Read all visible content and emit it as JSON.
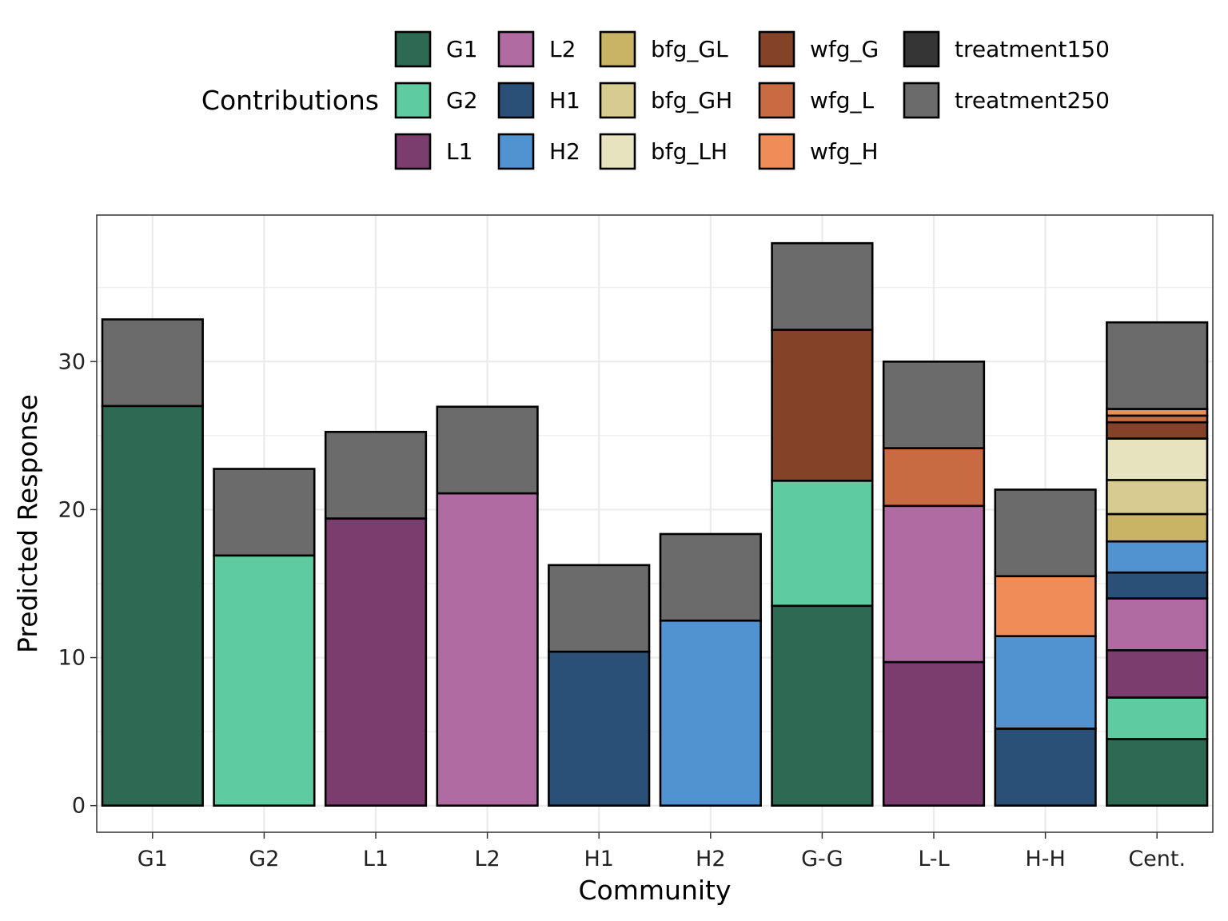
{
  "chart_data": {
    "type": "bar",
    "stacked": true,
    "xlabel": "Community",
    "ylabel": "Predicted Response",
    "ylim": [
      -1.8,
      39.9
    ],
    "yticks": [
      0,
      10,
      20,
      30
    ],
    "grid": true,
    "legend": {
      "title": "Contributions",
      "position": "top",
      "entries": [
        {
          "name": "G1",
          "color": "#2E6A53"
        },
        {
          "name": "G2",
          "color": "#5ECBA1"
        },
        {
          "name": "L1",
          "color": "#7A3D6E"
        },
        {
          "name": "L2",
          "color": "#B06BA3"
        },
        {
          "name": "H1",
          "color": "#2A5077"
        },
        {
          "name": "H2",
          "color": "#5093D0"
        },
        {
          "name": "bfg_GL",
          "color": "#C8B464"
        },
        {
          "name": "bfg_GH",
          "color": "#D8CB90"
        },
        {
          "name": "bfg_LH",
          "color": "#E8E3BF"
        },
        {
          "name": "wfg_G",
          "color": "#844328"
        },
        {
          "name": "wfg_L",
          "color": "#C86A42"
        },
        {
          "name": "wfg_H",
          "color": "#EF8C58"
        },
        {
          "name": "treatment150",
          "color": "#353535"
        },
        {
          "name": "treatment250",
          "color": "#6B6B6B"
        }
      ]
    },
    "categories": [
      "G1",
      "G2",
      "L1",
      "L2",
      "H1",
      "H2",
      "G-G",
      "L-L",
      "H-H",
      "Cent."
    ],
    "series": [
      {
        "name": "G1",
        "values": [
          27.0,
          0,
          0,
          0,
          0,
          0,
          13.5,
          0,
          0,
          4.5
        ]
      },
      {
        "name": "G2",
        "values": [
          0,
          16.9,
          0,
          0,
          0,
          0,
          8.45,
          0,
          0,
          2.8
        ]
      },
      {
        "name": "L1",
        "values": [
          0,
          0,
          19.4,
          0,
          0,
          0,
          0,
          9.7,
          0,
          3.2
        ]
      },
      {
        "name": "L2",
        "values": [
          0,
          0,
          0,
          21.1,
          0,
          0,
          0,
          10.55,
          0,
          3.5
        ]
      },
      {
        "name": "H1",
        "values": [
          0,
          0,
          0,
          0,
          10.4,
          0,
          0,
          0,
          5.2,
          1.75
        ]
      },
      {
        "name": "H2",
        "values": [
          0,
          0,
          0,
          0,
          0,
          12.5,
          0,
          0,
          6.25,
          2.1
        ]
      },
      {
        "name": "bfg_GL",
        "values": [
          0,
          0,
          0,
          0,
          0,
          0,
          0,
          0,
          0,
          1.85
        ]
      },
      {
        "name": "bfg_GH",
        "values": [
          0,
          0,
          0,
          0,
          0,
          0,
          0,
          0,
          0,
          2.3
        ]
      },
      {
        "name": "bfg_LH",
        "values": [
          0,
          0,
          0,
          0,
          0,
          0,
          0,
          0,
          0,
          2.8
        ]
      },
      {
        "name": "wfg_G",
        "values": [
          0,
          0,
          0,
          0,
          0,
          0,
          10.2,
          0,
          0,
          1.1
        ]
      },
      {
        "name": "wfg_L",
        "values": [
          0,
          0,
          0,
          0,
          0,
          0,
          0,
          3.9,
          0,
          0.45
        ]
      },
      {
        "name": "wfg_H",
        "values": [
          0,
          0,
          0,
          0,
          0,
          0,
          0,
          0,
          4.05,
          0.45
        ]
      },
      {
        "name": "treatment150",
        "values": [
          0,
          0,
          0,
          0,
          0,
          0,
          0,
          0,
          0,
          0
        ]
      },
      {
        "name": "treatment250",
        "values": [
          5.85,
          5.85,
          5.85,
          5.85,
          5.85,
          5.85,
          5.85,
          5.85,
          5.85,
          5.85
        ]
      }
    ]
  }
}
